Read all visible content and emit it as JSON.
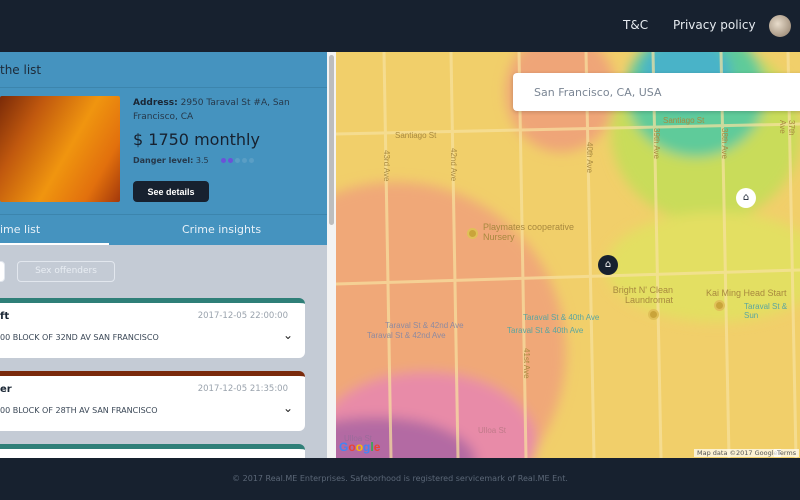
{
  "header": {
    "nav": [
      "T&C",
      "Privacy policy"
    ],
    "avatar": "user-avatar"
  },
  "listing": {
    "back_label": "the list",
    "address_label": "Address:",
    "address": "2950 Taraval St #A, San Francisco, CA",
    "price": "$ 1750 monthly",
    "danger_label": "Danger level:",
    "danger_value": "3.5",
    "danger_dots_filled": 2,
    "danger_dots_total": 5,
    "see_details": "See details"
  },
  "tabs": [
    {
      "label": "ime list",
      "active": true
    },
    {
      "label": "Crime insights",
      "active": false
    }
  ],
  "filters": [
    "",
    "Sex offenders"
  ],
  "crimes": [
    {
      "title": "ft",
      "date": "2017-12-05 22:00:00",
      "location": "00 BLOCK OF 32ND AV SAN FRANCISCO",
      "color": "#2f7f78"
    },
    {
      "title": "er",
      "date": "2017-12-05 21:35:00",
      "location": "00 BLOCK OF 28TH AV SAN FRANCISCO",
      "color": "#7a2a0c"
    },
    {
      "title": "",
      "date": "",
      "location": "",
      "color": "#2f7f78"
    }
  ],
  "map": {
    "search_value": "San Francisco, CA, USA",
    "labels": {
      "santiago1": "Santiago St",
      "santiago2": "Santiago St",
      "ave43": "43rd Ave",
      "ave42": "42nd Ave",
      "ave40": "40th Ave",
      "ave39": "39th Ave",
      "ave38": "38th Ave",
      "ave37": "37th Ave",
      "ave41": "41st Ave",
      "playmates": "Playmates cooperative Nursery",
      "bright": "Bright N' Clean Laundromat",
      "kaiming": "Kai Ming Head Start",
      "bus1": "Taraval St & 40th Ave",
      "bus2": "Taraval St & 40th Ave",
      "bus3": "Taraval St & 42nd Ave",
      "bus4": "Taraval St & 42nd Ave",
      "bus5": "Taraval St & Sun",
      "ulloa1": "Ulloa St",
      "ulloa2": "Ulloa St"
    },
    "attribution": "Map data ©2017 Google",
    "terms": "Terms",
    "google": "Google"
  },
  "footer": "© 2017 Real.ME Enterprises. Safeborhood is registered servicemark of Real.ME Ent."
}
